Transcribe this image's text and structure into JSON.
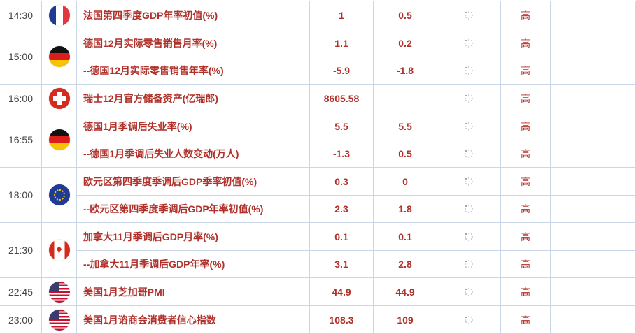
{
  "colors": {
    "text": "#b0302a",
    "border": "#c9d6e6"
  },
  "actual_icon": "loading-spinner-icon",
  "groups": [
    {
      "time": "14:30",
      "flag": "france",
      "events": [
        {
          "name": "法国第四季度GDP年率初值(%)",
          "previous": "1",
          "forecast": "0.5",
          "importance": "高"
        }
      ]
    },
    {
      "time": "15:00",
      "flag": "germany",
      "events": [
        {
          "name": "德国12月实际零售销售月率(%)",
          "previous": "1.1",
          "forecast": "0.2",
          "importance": "高"
        },
        {
          "name": "--德国12月实际零售销售年率(%)",
          "previous": "-5.9",
          "forecast": "-1.8",
          "importance": "高"
        }
      ]
    },
    {
      "time": "16:00",
      "flag": "switzerland",
      "events": [
        {
          "name": "瑞士12月官方储备资产(亿瑞郎)",
          "previous": "8605.58",
          "forecast": "",
          "importance": "高"
        }
      ]
    },
    {
      "time": "16:55",
      "flag": "germany",
      "events": [
        {
          "name": "德国1月季调后失业率(%)",
          "previous": "5.5",
          "forecast": "5.5",
          "importance": "高"
        },
        {
          "name": "--德国1月季调后失业人数变动(万人)",
          "previous": "-1.3",
          "forecast": "0.5",
          "importance": "高"
        }
      ]
    },
    {
      "time": "18:00",
      "flag": "eu",
      "events": [
        {
          "name": "欧元区第四季度季调后GDP季率初值(%)",
          "previous": "0.3",
          "forecast": "0",
          "importance": "高"
        },
        {
          "name": "--欧元区第四季度季调后GDP年率初值(%)",
          "previous": "2.3",
          "forecast": "1.8",
          "importance": "高"
        }
      ]
    },
    {
      "time": "21:30",
      "flag": "canada",
      "events": [
        {
          "name": "加拿大11月季调后GDP月率(%)",
          "previous": "0.1",
          "forecast": "0.1",
          "importance": "高"
        },
        {
          "name": "--加拿大11月季调后GDP年率(%)",
          "previous": "3.1",
          "forecast": "2.8",
          "importance": "高"
        }
      ]
    },
    {
      "time": "22:45",
      "flag": "usa",
      "events": [
        {
          "name": "美国1月芝加哥PMI",
          "previous": "44.9",
          "forecast": "44.9",
          "importance": "高"
        }
      ]
    },
    {
      "time": "23:00",
      "flag": "usa",
      "events": [
        {
          "name": "美国1月谘商会消费者信心指数",
          "previous": "108.3",
          "forecast": "109",
          "importance": "高"
        }
      ]
    }
  ]
}
